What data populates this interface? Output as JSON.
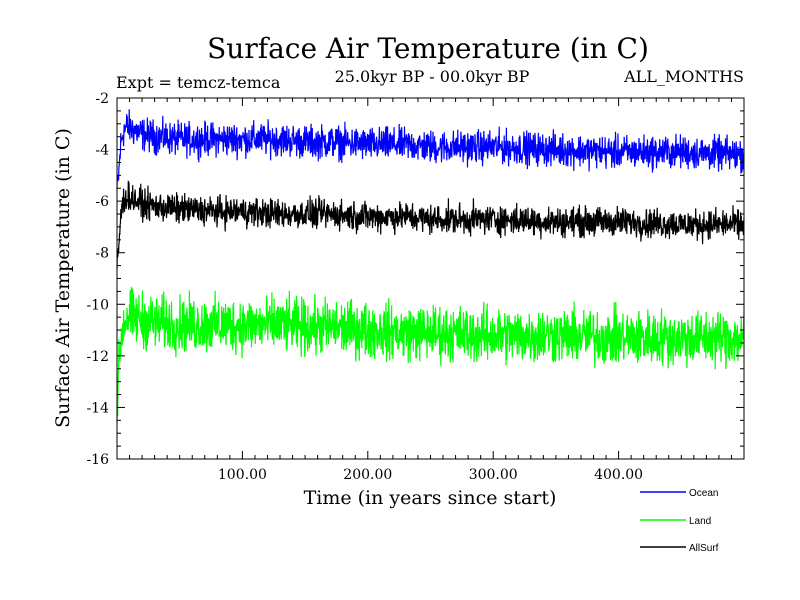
{
  "chart_data": {
    "type": "line",
    "title": "Surface Air Temperature (in C)",
    "subtitle": "25.0kyr BP - 00.0kyr BP",
    "experiment_label": "Expt = temcz-temca",
    "months_label": "ALL_MONTHS",
    "xlabel": "Time (in years since start)",
    "ylabel": "Surface Air Temperature (in C)",
    "xlim": [
      0,
      500
    ],
    "ylim": [
      -16,
      -2
    ],
    "xticks": [
      100,
      200,
      300,
      400
    ],
    "xtick_labels": [
      "100.00",
      "200.00",
      "300.00",
      "400.00"
    ],
    "yticks": [
      -16,
      -14,
      -12,
      -10,
      -8,
      -6,
      -4,
      -2
    ],
    "ytick_labels": [
      "-16",
      "-14",
      "-12",
      "-10",
      "-8",
      "-6",
      "-4",
      "-2"
    ],
    "legend_position": "bottom-right",
    "series": [
      {
        "name": "Ocean",
        "color": "#0000ff",
        "x": [
          0,
          1,
          2,
          3,
          5,
          8,
          12,
          20,
          30,
          50,
          80,
          100,
          130,
          150,
          170,
          200,
          230,
          250,
          300,
          350,
          400,
          450,
          500
        ],
        "values": [
          -5.6,
          -5.2,
          -4.5,
          -3.8,
          -3.3,
          -3.1,
          -3.2,
          -3.4,
          -3.5,
          -3.6,
          -3.6,
          -3.6,
          -3.6,
          -3.7,
          -3.7,
          -3.8,
          -3.8,
          -3.9,
          -3.9,
          -4.0,
          -4.1,
          -4.1,
          -4.2
        ],
        "noise": 0.45
      },
      {
        "name": "Land",
        "color": "#00ff00",
        "x": [
          0,
          1,
          2,
          3,
          5,
          8,
          12,
          20,
          30,
          50,
          80,
          100,
          130,
          150,
          170,
          200,
          230,
          250,
          300,
          350,
          400,
          450,
          500
        ],
        "values": [
          -13.8,
          -13.0,
          -12.2,
          -11.4,
          -10.8,
          -10.5,
          -10.5,
          -10.6,
          -10.7,
          -10.8,
          -10.8,
          -10.8,
          -10.8,
          -10.9,
          -10.9,
          -11.0,
          -11.1,
          -11.1,
          -11.2,
          -11.2,
          -11.3,
          -11.3,
          -11.3
        ],
        "noise": 0.75
      },
      {
        "name": "AllSurf",
        "color": "#000000",
        "x": [
          0,
          1,
          2,
          3,
          5,
          8,
          12,
          20,
          30,
          50,
          80,
          100,
          130,
          150,
          170,
          200,
          230,
          250,
          300,
          350,
          400,
          450,
          500
        ],
        "values": [
          -8.5,
          -8.0,
          -7.3,
          -6.6,
          -6.0,
          -5.8,
          -5.9,
          -6.1,
          -6.2,
          -6.3,
          -6.4,
          -6.4,
          -6.5,
          -6.5,
          -6.5,
          -6.6,
          -6.6,
          -6.7,
          -6.7,
          -6.8,
          -6.8,
          -6.9,
          -6.9
        ],
        "noise": 0.4
      }
    ]
  }
}
